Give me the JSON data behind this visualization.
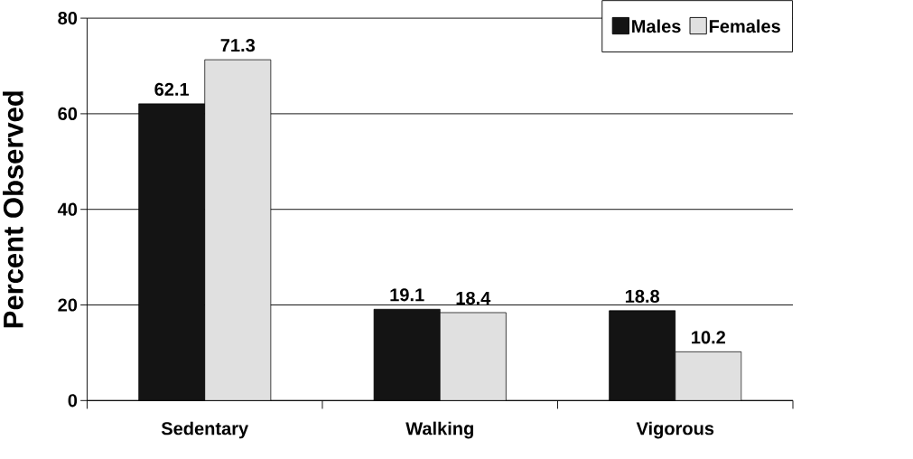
{
  "chart_data": {
    "type": "bar",
    "ylabel": "Percent Observed",
    "categories": [
      "Sedentary",
      "Walking",
      "Vigorous"
    ],
    "series": [
      {
        "name": "Males",
        "color": "#141414",
        "values": [
          62.1,
          19.1,
          18.8
        ]
      },
      {
        "name": "Females",
        "color": "#e0e0e0",
        "values": [
          71.3,
          18.4,
          10.2
        ]
      }
    ],
    "ylim": [
      0,
      80
    ],
    "yticks": [
      0,
      20,
      40,
      60,
      80
    ],
    "grid": "y",
    "legend": "top right",
    "data_labels": true
  }
}
